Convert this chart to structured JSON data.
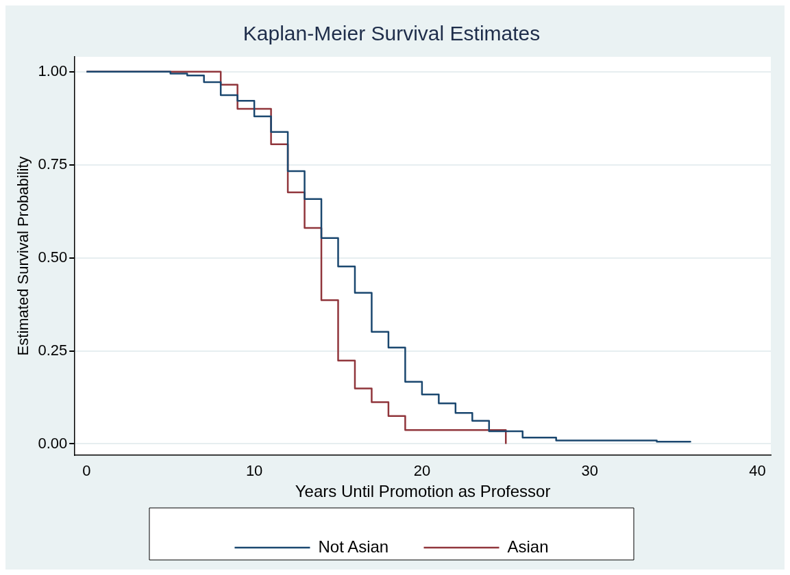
{
  "chart_data": {
    "type": "step",
    "title": "Kaplan-Meier Survival Estimates",
    "xlabel": "Years Until Promotion as Professor",
    "ylabel": "Estimated Survival Probability",
    "series": [
      {
        "name": "Not Asian",
        "color": "#1a476f",
        "x": [
          0,
          5,
          6,
          7,
          8,
          9,
          10,
          11,
          12,
          13,
          14,
          15,
          16,
          17,
          18,
          19,
          20,
          21,
          22,
          23,
          24,
          26,
          28,
          34,
          36
        ],
        "values": [
          1,
          0.995,
          0.99,
          0.972,
          0.937,
          0.922,
          0.88,
          0.838,
          0.733,
          0.658,
          0.553,
          0.477,
          0.406,
          0.301,
          0.259,
          0.167,
          0.133,
          0.109,
          0.083,
          0.062,
          0.034,
          0.017,
          0.009,
          0.006,
          0.004
        ]
      },
      {
        "name": "Asian",
        "color": "#90353b",
        "x": [
          0,
          8,
          9,
          11,
          12,
          13,
          14,
          15,
          16,
          17,
          18,
          19,
          25
        ],
        "values": [
          1,
          0.965,
          0.9,
          0.805,
          0.676,
          0.58,
          0.386,
          0.224,
          0.149,
          0.112,
          0.075,
          0.037,
          0
        ]
      }
    ],
    "xlim": [
      -0.7,
      40.8
    ],
    "xticks": [
      0,
      10,
      20,
      30,
      40
    ],
    "ylim": [
      -0.03,
      1.04
    ],
    "yticks": [
      {
        "value": 0,
        "label": "0.00"
      },
      {
        "value": 0.25,
        "label": "0.25"
      },
      {
        "value": 0.5,
        "label": "0.50"
      },
      {
        "value": 0.75,
        "label": "0.75"
      },
      {
        "value": 1,
        "label": "1.00"
      }
    ],
    "grid": "y",
    "legend": "bottom",
    "line_style": "solid",
    "marker": "none"
  }
}
